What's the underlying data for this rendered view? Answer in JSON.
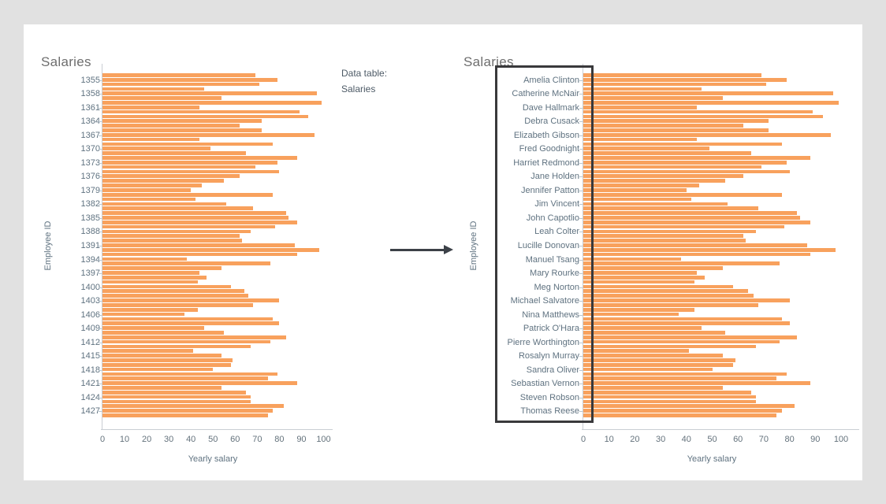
{
  "page": {
    "background_color": "#e1e1e1",
    "card_color": "#ffffff"
  },
  "annotation": {
    "line1": "Data table:",
    "line2": "Salaries"
  },
  "colors": {
    "bar": "#f8a15d",
    "axis_line": "#c9ced3",
    "tick": "#b9c8d2",
    "label_text": "#5f7280",
    "title_text": "#6e6e6e",
    "annotation_text": "#4d5a66",
    "arrow": "#3c4148",
    "highlight_box_border": "#39393b"
  },
  "chart_data": [
    {
      "type": "bar",
      "orientation": "horizontal",
      "title": "Salaries",
      "xlabel": "Yearly salary",
      "ylabel": "Employee ID",
      "xlim": [
        0,
        100
      ],
      "x_ticks": [
        0,
        10,
        20,
        30,
        40,
        50,
        60,
        70,
        80,
        90,
        100
      ],
      "label_every_n_bars": 3,
      "first_labeled_bar_index": 1,
      "y_tick_labels": [
        "1355",
        "1358",
        "1361",
        "1364",
        "1367",
        "1370",
        "1373",
        "1376",
        "1379",
        "1382",
        "1385",
        "1388",
        "1391",
        "1394",
        "1397",
        "1400",
        "1403",
        "1406",
        "1409",
        "1412",
        "1415",
        "1418",
        "1421",
        "1424",
        "1427"
      ],
      "values": [
        69,
        79,
        71,
        46,
        97,
        54,
        99,
        44,
        89,
        93,
        72,
        62,
        72,
        96,
        44,
        77,
        49,
        65,
        88,
        79,
        69,
        80,
        62,
        55,
        45,
        40,
        77,
        42,
        56,
        68,
        83,
        84,
        88,
        78,
        67,
        62,
        63,
        87,
        98,
        88,
        38,
        76,
        54,
        44,
        47,
        43,
        58,
        64,
        66,
        80,
        68,
        43,
        37,
        77,
        80,
        46,
        55,
        83,
        76,
        67,
        41,
        54,
        59,
        58,
        50,
        79,
        75,
        88,
        54,
        65,
        67,
        67,
        82,
        77,
        75
      ]
    },
    {
      "type": "bar",
      "orientation": "horizontal",
      "title": "Salaries",
      "xlabel": "Yearly salary",
      "ylabel": "Employee ID",
      "xlim": [
        0,
        100
      ],
      "x_ticks": [
        0,
        10,
        20,
        30,
        40,
        50,
        60,
        70,
        80,
        90,
        100
      ],
      "label_every_n_bars": 3,
      "first_labeled_bar_index": 1,
      "y_tick_labels": [
        "Amelia Clinton",
        "Catherine McNair",
        "Dave Hallmark",
        "Debra Cusack",
        "Elizabeth Gibson",
        "Fred Goodnight",
        "Harriet Redmond",
        "Jane Holden",
        "Jennifer Patton",
        "Jim Vincent",
        "John Capotlio",
        "Leah Colter",
        "Lucille Donovan",
        "Manuel Tsang",
        "Mary Rourke",
        "Meg Norton",
        "Michael Salvatore",
        "Nina Matthews",
        "Patrick O'Hara",
        "Pierre Worthington",
        "Rosalyn Murray",
        "Sandra Oliver",
        "Sebastian Vernon",
        "Steven Robson",
        "Thomas Reese"
      ],
      "values": [
        69,
        79,
        71,
        46,
        97,
        54,
        99,
        44,
        89,
        93,
        72,
        62,
        72,
        96,
        44,
        77,
        49,
        65,
        88,
        79,
        69,
        80,
        62,
        55,
        45,
        40,
        77,
        42,
        56,
        68,
        83,
        84,
        88,
        78,
        67,
        62,
        63,
        87,
        98,
        88,
        38,
        76,
        54,
        44,
        47,
        43,
        58,
        64,
        66,
        80,
        68,
        43,
        37,
        77,
        80,
        46,
        55,
        83,
        76,
        67,
        41,
        54,
        59,
        58,
        50,
        79,
        75,
        88,
        54,
        65,
        67,
        67,
        82,
        77,
        75
      ]
    }
  ]
}
